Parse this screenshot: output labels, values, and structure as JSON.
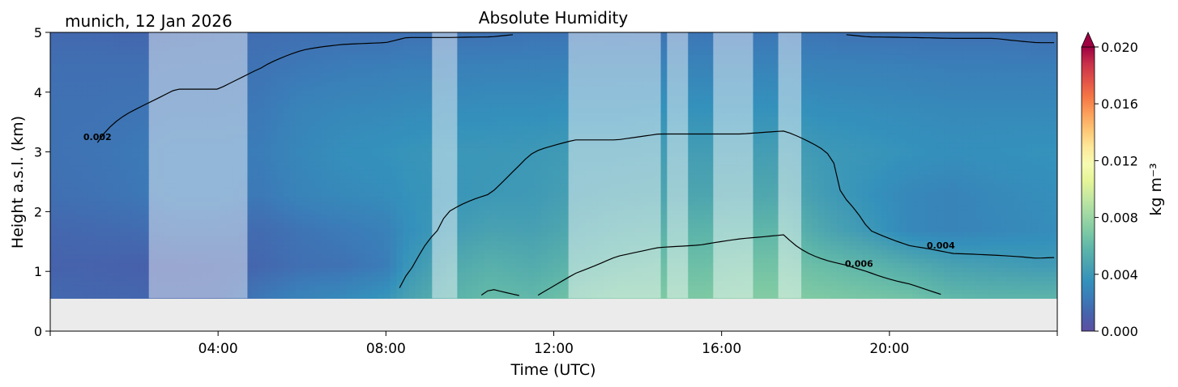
{
  "chart_data": {
    "type": "heatmap",
    "title": "Absolute Humidity",
    "location_label": "munich, 12 Jan 2026",
    "xlabel": "Time (UTC)",
    "ylabel": "Height a.s.l. (km)",
    "x_range_hours": [
      0,
      24
    ],
    "ylim": [
      0,
      5
    ],
    "x_ticks": [
      {
        "hour": 4,
        "label": "04:00"
      },
      {
        "hour": 8,
        "label": "08:00"
      },
      {
        "hour": 12,
        "label": "12:00"
      },
      {
        "hour": 16,
        "label": "16:00"
      },
      {
        "hour": 20,
        "label": "20:00"
      }
    ],
    "y_ticks": [
      {
        "value": 0,
        "label": "0"
      },
      {
        "value": 1,
        "label": "1"
      },
      {
        "value": 2,
        "label": "2"
      },
      {
        "value": 3,
        "label": "3"
      },
      {
        "value": 4,
        "label": "4"
      },
      {
        "value": 5,
        "label": "5"
      }
    ],
    "data_min_height_km": 0.55,
    "no_data_color": "#ebebeb",
    "colorbar": {
      "label": "kg m⁻³",
      "range": [
        0,
        0.02
      ],
      "ticks": [
        {
          "value": 0.0,
          "label": "0.000"
        },
        {
          "value": 0.004,
          "label": "0.004"
        },
        {
          "value": 0.008,
          "label": "0.008"
        },
        {
          "value": 0.012,
          "label": "0.012"
        },
        {
          "value": 0.016,
          "label": "0.016"
        },
        {
          "value": 0.02,
          "label": "0.020"
        }
      ],
      "colors": [
        "#5e4fa2",
        "#4662ac",
        "#3b7cb8",
        "#3491bb",
        "#4ba3b0",
        "#5fb6a9",
        "#7fcaa4",
        "#a2d9a4",
        "#c4e8a1",
        "#e6f598",
        "#f6fbb2",
        "#fee89a",
        "#fdc776",
        "#fca05b",
        "#f57746",
        "#e25248",
        "#c9304a",
        "#9e0142"
      ]
    },
    "contours": [
      {
        "level": 0.002,
        "label": "0.002"
      },
      {
        "level": 0.004,
        "label": "0.004"
      },
      {
        "level": 0.006,
        "label": "0.006"
      }
    ],
    "masked_intervals_hours": [
      [
        2.35,
        4.7
      ],
      [
        9.1,
        9.7
      ],
      [
        12.35,
        14.55
      ],
      [
        14.7,
        15.2
      ],
      [
        15.8,
        16.75
      ],
      [
        17.35,
        17.9
      ]
    ],
    "time_columns": [
      {
        "hour": 0.0,
        "levels": [
          0.0015,
          0.0012,
          0.0014,
          0.0018,
          0.0019,
          0.0019,
          0.0018,
          0.0015
        ]
      },
      {
        "hour": 1.0,
        "levels": [
          0.0014,
          0.0012,
          0.0015,
          0.0019,
          0.002,
          0.0019,
          0.0018,
          0.0015
        ]
      },
      {
        "hour": 2.0,
        "levels": [
          0.0014,
          0.0011,
          0.0016,
          0.0021,
          0.0022,
          0.002,
          0.0018,
          0.0014
        ]
      },
      {
        "hour": 3.0,
        "levels": [
          0.0013,
          0.0011,
          0.0018,
          0.0024,
          0.0024,
          0.0021,
          0.0019,
          0.0015
        ]
      },
      {
        "hour": 4.0,
        "levels": [
          0.0013,
          0.0012,
          0.0018,
          0.0024,
          0.0024,
          0.0021,
          0.0019,
          0.0016
        ]
      },
      {
        "hour": 5.0,
        "levels": [
          0.0022,
          0.0014,
          0.0016,
          0.0022,
          0.0024,
          0.0022,
          0.002,
          0.0017
        ]
      },
      {
        "hour": 6.0,
        "levels": [
          0.0028,
          0.0018,
          0.002,
          0.0028,
          0.003,
          0.0028,
          0.0022,
          0.0018
        ]
      },
      {
        "hour": 7.0,
        "levels": [
          0.0032,
          0.0019,
          0.0023,
          0.0031,
          0.0034,
          0.003,
          0.0024,
          0.0018
        ]
      },
      {
        "hour": 8.0,
        "levels": [
          0.0038,
          0.0024,
          0.0026,
          0.0033,
          0.0036,
          0.0031,
          0.0025,
          0.0018
        ]
      },
      {
        "hour": 8.5,
        "levels": [
          0.0046,
          0.0038,
          0.0034,
          0.0036,
          0.0037,
          0.0032,
          0.0026,
          0.0019
        ]
      },
      {
        "hour": 9.5,
        "levels": [
          0.0056,
          0.005,
          0.0042,
          0.0038,
          0.0039,
          0.0033,
          0.0026,
          0.0019
        ]
      },
      {
        "hour": 10.5,
        "levels": [
          0.0062,
          0.0055,
          0.0046,
          0.004,
          0.0039,
          0.0034,
          0.0027,
          0.0019
        ]
      },
      {
        "hour": 11.5,
        "levels": [
          0.006,
          0.0052,
          0.0045,
          0.0041,
          0.004,
          0.0034,
          0.0027,
          0.002
        ]
      },
      {
        "hour": 12.5,
        "levels": [
          0.0066,
          0.0058,
          0.005,
          0.0045,
          0.0042,
          0.0035,
          0.0028,
          0.002
        ]
      },
      {
        "hour": 13.5,
        "levels": [
          0.007,
          0.0062,
          0.0054,
          0.0047,
          0.0042,
          0.0035,
          0.0028,
          0.0021
        ]
      },
      {
        "hour": 14.5,
        "levels": [
          0.007,
          0.0064,
          0.0056,
          0.0048,
          0.0043,
          0.0036,
          0.0028,
          0.002
        ]
      },
      {
        "hour": 15.5,
        "levels": [
          0.007,
          0.0064,
          0.0057,
          0.0048,
          0.0043,
          0.0036,
          0.0028,
          0.0021
        ]
      },
      {
        "hour": 16.5,
        "levels": [
          0.0072,
          0.0066,
          0.0058,
          0.0049,
          0.0043,
          0.0036,
          0.0028,
          0.0021
        ]
      },
      {
        "hour": 17.5,
        "levels": [
          0.0072,
          0.0066,
          0.0059,
          0.005,
          0.0044,
          0.0036,
          0.0029,
          0.0021
        ]
      },
      {
        "hour": 18.5,
        "levels": [
          0.007,
          0.0062,
          0.0048,
          0.0042,
          0.004,
          0.0034,
          0.0027,
          0.002
        ]
      },
      {
        "hour": 19.5,
        "levels": [
          0.0068,
          0.0058,
          0.004,
          0.0036,
          0.0038,
          0.0033,
          0.0027,
          0.0019
        ]
      },
      {
        "hour": 20.5,
        "levels": [
          0.0066,
          0.0052,
          0.003,
          0.003,
          0.0036,
          0.0032,
          0.0026,
          0.0019
        ]
      },
      {
        "hour": 21.5,
        "levels": [
          0.006,
          0.0046,
          0.0028,
          0.0028,
          0.0034,
          0.0031,
          0.0025,
          0.0019
        ]
      },
      {
        "hour": 22.5,
        "levels": [
          0.0058,
          0.0044,
          0.003,
          0.0031,
          0.0035,
          0.0031,
          0.0025,
          0.0019
        ]
      },
      {
        "hour": 23.5,
        "levels": [
          0.0058,
          0.0042,
          0.0032,
          0.0033,
          0.0036,
          0.0031,
          0.0025,
          0.0018
        ]
      },
      {
        "hour": 24.0,
        "levels": [
          0.0058,
          0.0042,
          0.0033,
          0.0034,
          0.0036,
          0.0031,
          0.0025,
          0.0018
        ]
      }
    ],
    "level_heights_km": [
      0.55,
      1.1,
      1.7,
      2.3,
      3.0,
      3.7,
      4.4,
      5.0
    ]
  }
}
